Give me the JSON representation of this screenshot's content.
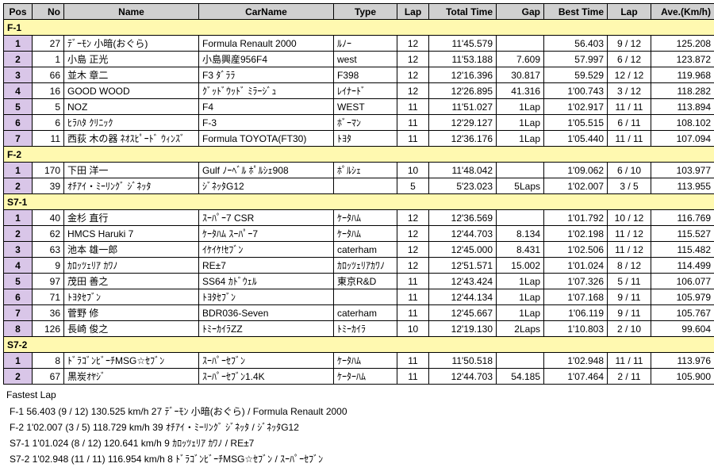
{
  "columns": [
    "Pos",
    "No",
    "Name",
    "CarName",
    "Type",
    "Lap",
    "Total Time",
    "Gap",
    "Best Time",
    "Lap",
    "Ave.(Km/h)"
  ],
  "colClasses": [
    "col-pos",
    "col-no",
    "col-name",
    "col-carname",
    "col-type",
    "col-lap",
    "col-total",
    "col-gap",
    "col-best",
    "col-bestlap",
    "col-ave"
  ],
  "colors": {
    "header_bg": "#d0d0d0",
    "class_bg": "#fff9b0",
    "pos_bg": "#d9c6e8",
    "border": "#000000"
  },
  "groups": [
    {
      "class": "F-1",
      "rows": [
        {
          "pos": "1",
          "no": "27",
          "name": "ﾃﾞｰﾓﾝ 小暗(おぐら)",
          "car": "Formula Renault 2000",
          "type": "ﾙﾉｰ",
          "lap": "12",
          "total": "11'45.579",
          "gap": "",
          "best": "56.403",
          "bestlap": "9 / 12",
          "ave": "125.208"
        },
        {
          "pos": "2",
          "no": "1",
          "name": "小島 正光",
          "car": "小島興産956F4",
          "type": "west",
          "lap": "12",
          "total": "11'53.188",
          "gap": "7.609",
          "best": "57.997",
          "bestlap": "6 / 12",
          "ave": "123.872"
        },
        {
          "pos": "3",
          "no": "66",
          "name": "並木 章二",
          "car": "F3 ﾀﾞﾗﾗ",
          "type": "F398",
          "lap": "12",
          "total": "12'16.396",
          "gap": "30.817",
          "best": "59.529",
          "bestlap": "12 / 12",
          "ave": "119.968"
        },
        {
          "pos": "4",
          "no": "16",
          "name": "GOOD WOOD",
          "car": "ｸﾞｯﾄﾞｳｯﾄﾞ ﾐﾗｰｼﾞｭ",
          "type": "ﾚｲﾅｰﾄﾞ",
          "lap": "12",
          "total": "12'26.895",
          "gap": "41.316",
          "best": "1'00.743",
          "bestlap": "3 / 12",
          "ave": "118.282"
        },
        {
          "pos": "5",
          "no": "5",
          "name": "NOZ",
          "car": "F4",
          "type": "WEST",
          "lap": "11",
          "total": "11'51.027",
          "gap": "1Lap",
          "best": "1'02.917",
          "bestlap": "11 / 11",
          "ave": "113.894"
        },
        {
          "pos": "6",
          "no": "6",
          "name": "ﾋﾗﾊﾀ ｸﾘﾆｯｸ",
          "car": "F-3",
          "type": "ﾎﾞｰﾏﾝ",
          "lap": "11",
          "total": "12'29.127",
          "gap": "1Lap",
          "best": "1'05.515",
          "bestlap": "6 / 11",
          "ave": "108.102"
        },
        {
          "pos": "7",
          "no": "11",
          "name": "西荻 木の器 ﾈｵｽﾋﾟｰﾄﾞ ｳｨﾝｽﾞ",
          "car": "Formula TOYOTA(FT30)",
          "type": "ﾄﾖﾀ",
          "lap": "11",
          "total": "12'36.176",
          "gap": "1Lap",
          "best": "1'05.440",
          "bestlap": "11 / 11",
          "ave": "107.094"
        }
      ]
    },
    {
      "class": "F-2",
      "rows": [
        {
          "pos": "1",
          "no": "170",
          "name": "下田 洋一",
          "car": "Gulf ﾉｰﾍﾞﾙ ﾎﾟﾙｼｪ908",
          "type": "ﾎﾟﾙｼｪ",
          "lap": "10",
          "total": "11'48.042",
          "gap": "",
          "best": "1'09.062",
          "bestlap": "6 / 10",
          "ave": "103.977"
        },
        {
          "pos": "2",
          "no": "39",
          "name": "ｵﾁｱｲ・ﾐｰﾘﾝｸﾞ ｼﾞﾈｯﾀ",
          "car": "ｼﾞﾈｯﾀG12",
          "type": "",
          "lap": "5",
          "total": "5'23.023",
          "gap": "5Laps",
          "best": "1'02.007",
          "bestlap": "3 / 5",
          "ave": "113.955"
        }
      ]
    },
    {
      "class": "S7-1",
      "rows": [
        {
          "pos": "1",
          "no": "40",
          "name": "金杉 直行",
          "car": "ｽｰﾊﾟｰ7 CSR",
          "type": "ｹｰﾀﾊﾑ",
          "lap": "12",
          "total": "12'36.569",
          "gap": "",
          "best": "1'01.792",
          "bestlap": "10 / 12",
          "ave": "116.769"
        },
        {
          "pos": "2",
          "no": "62",
          "name": "HMCS Haruki 7",
          "car": "ｹｰﾀﾊﾑ ｽｰﾊﾟｰ7",
          "type": "ｹｰﾀﾊﾑ",
          "lap": "12",
          "total": "12'44.703",
          "gap": "8.134",
          "best": "1'02.198",
          "bestlap": "11 / 12",
          "ave": "115.527"
        },
        {
          "pos": "3",
          "no": "63",
          "name": "池本 雄一郎",
          "car": "ｲｹｲｹ!ｾﾌﾞﾝ",
          "type": "caterham",
          "lap": "12",
          "total": "12'45.000",
          "gap": "8.431",
          "best": "1'02.506",
          "bestlap": "11 / 12",
          "ave": "115.482"
        },
        {
          "pos": "4",
          "no": "9",
          "name": "ｶﾛｯﾂｪﾘｱ ｶﾜﾉ",
          "car": "RE±7",
          "type": "ｶﾛｯﾂｪﾘｱｶﾜﾉ",
          "lap": "12",
          "total": "12'51.571",
          "gap": "15.002",
          "best": "1'01.024",
          "bestlap": "8 / 12",
          "ave": "114.499"
        },
        {
          "pos": "5",
          "no": "97",
          "name": "茂田 善之",
          "car": "SS64 ｶﾄﾞｳｪﾙ",
          "type": "東京R&D",
          "lap": "11",
          "total": "12'43.424",
          "gap": "1Lap",
          "best": "1'07.326",
          "bestlap": "5 / 11",
          "ave": "106.077"
        },
        {
          "pos": "6",
          "no": "71",
          "name": "ﾄﾖﾀｾﾌﾞﾝ",
          "car": "ﾄﾖﾀｾﾌﾞﾝ",
          "type": "",
          "lap": "11",
          "total": "12'44.134",
          "gap": "1Lap",
          "best": "1'07.168",
          "bestlap": "9 / 11",
          "ave": "105.979"
        },
        {
          "pos": "7",
          "no": "36",
          "name": "菅野 修",
          "car": "BDR036-Seven",
          "type": "caterham",
          "lap": "11",
          "total": "12'45.667",
          "gap": "1Lap",
          "best": "1'06.119",
          "bestlap": "9 / 11",
          "ave": "105.767"
        },
        {
          "pos": "8",
          "no": "126",
          "name": "長崎 俊之",
          "car": "ﾄﾐｰｶｲﾗZZ",
          "type": "ﾄﾐｰｶｲﾗ",
          "lap": "10",
          "total": "12'19.130",
          "gap": "2Laps",
          "best": "1'10.803",
          "bestlap": "2 / 10",
          "ave": "99.604"
        }
      ]
    },
    {
      "class": "S7-2",
      "rows": [
        {
          "pos": "1",
          "no": "8",
          "name": "ﾄﾞﾗｺﾞﾝﾋﾞｰﾁMSG☆ｾﾌﾞﾝ",
          "car": "ｽｰﾊﾟｰｾﾌﾞﾝ",
          "type": "ｹｰﾀﾊﾑ",
          "lap": "11",
          "total": "11'50.518",
          "gap": "",
          "best": "1'02.948",
          "bestlap": "11 / 11",
          "ave": "113.976"
        },
        {
          "pos": "2",
          "no": "67",
          "name": "黒炭ｵﾔｼﾞ",
          "car": "ｽｰﾊﾟｰｾﾌﾞﾝ1.4K",
          "type": "ｹｰﾀｰﾊﾑ",
          "lap": "11",
          "total": "12'44.703",
          "gap": "54.185",
          "best": "1'07.464",
          "bestlap": "2 / 11",
          "ave": "105.900"
        }
      ]
    }
  ],
  "fastest_title": "Fastest Lap",
  "fastest_lines": [
    "F-1 56.403 (9 / 12) 130.525 km/h 27 ﾃﾞｰﾓﾝ 小暗(おぐら) / Formula Renault 2000",
    "F-2 1'02.007 (3 / 5) 118.729 km/h 39 ｵﾁｱｲ・ﾐｰﾘﾝｸﾞ ｼﾞﾈｯﾀ / ｼﾞﾈｯﾀG12",
    "S7-1 1'01.024 (8 / 12) 120.641 km/h 9 ｶﾛｯﾂｪﾘｱ ｶﾜﾉ / RE±7",
    "S7-2 1'02.948 (11 / 11) 116.954 km/h 8 ﾄﾞﾗｺﾞﾝﾋﾞｰﾁMSG☆ｾﾌﾞﾝ / ｽｰﾊﾟｰｾﾌﾞﾝ"
  ]
}
